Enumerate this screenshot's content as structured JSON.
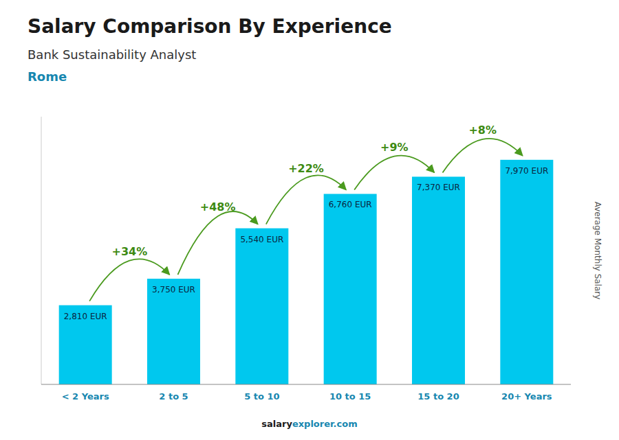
{
  "chart_data": {
    "type": "bar",
    "title": "Salary Comparison By Experience",
    "subtitle": "Bank Sustainability Analyst",
    "city": "Rome",
    "ylabel": "Average Monthly Salary",
    "footer": [
      "salary",
      "explorer.com"
    ],
    "categories": [
      "< 2 Years",
      "2 to 5",
      "5 to 10",
      "10 to 15",
      "15 to 20",
      "20+ Years"
    ],
    "values": [
      2810,
      3750,
      5540,
      6760,
      7370,
      7970
    ],
    "value_labels": [
      "2,810 EUR",
      "3,750 EUR",
      "5,540 EUR",
      "6,760 EUR",
      "7,370 EUR",
      "7,970 EUR"
    ],
    "data_labels": true,
    "annotations": [
      "+34%",
      "+48%",
      "+22%",
      "+9%",
      "+8%"
    ],
    "color": "#00c8ee",
    "ylim": [
      0,
      9500
    ],
    "tick_labels": "x",
    "grid": false
  }
}
